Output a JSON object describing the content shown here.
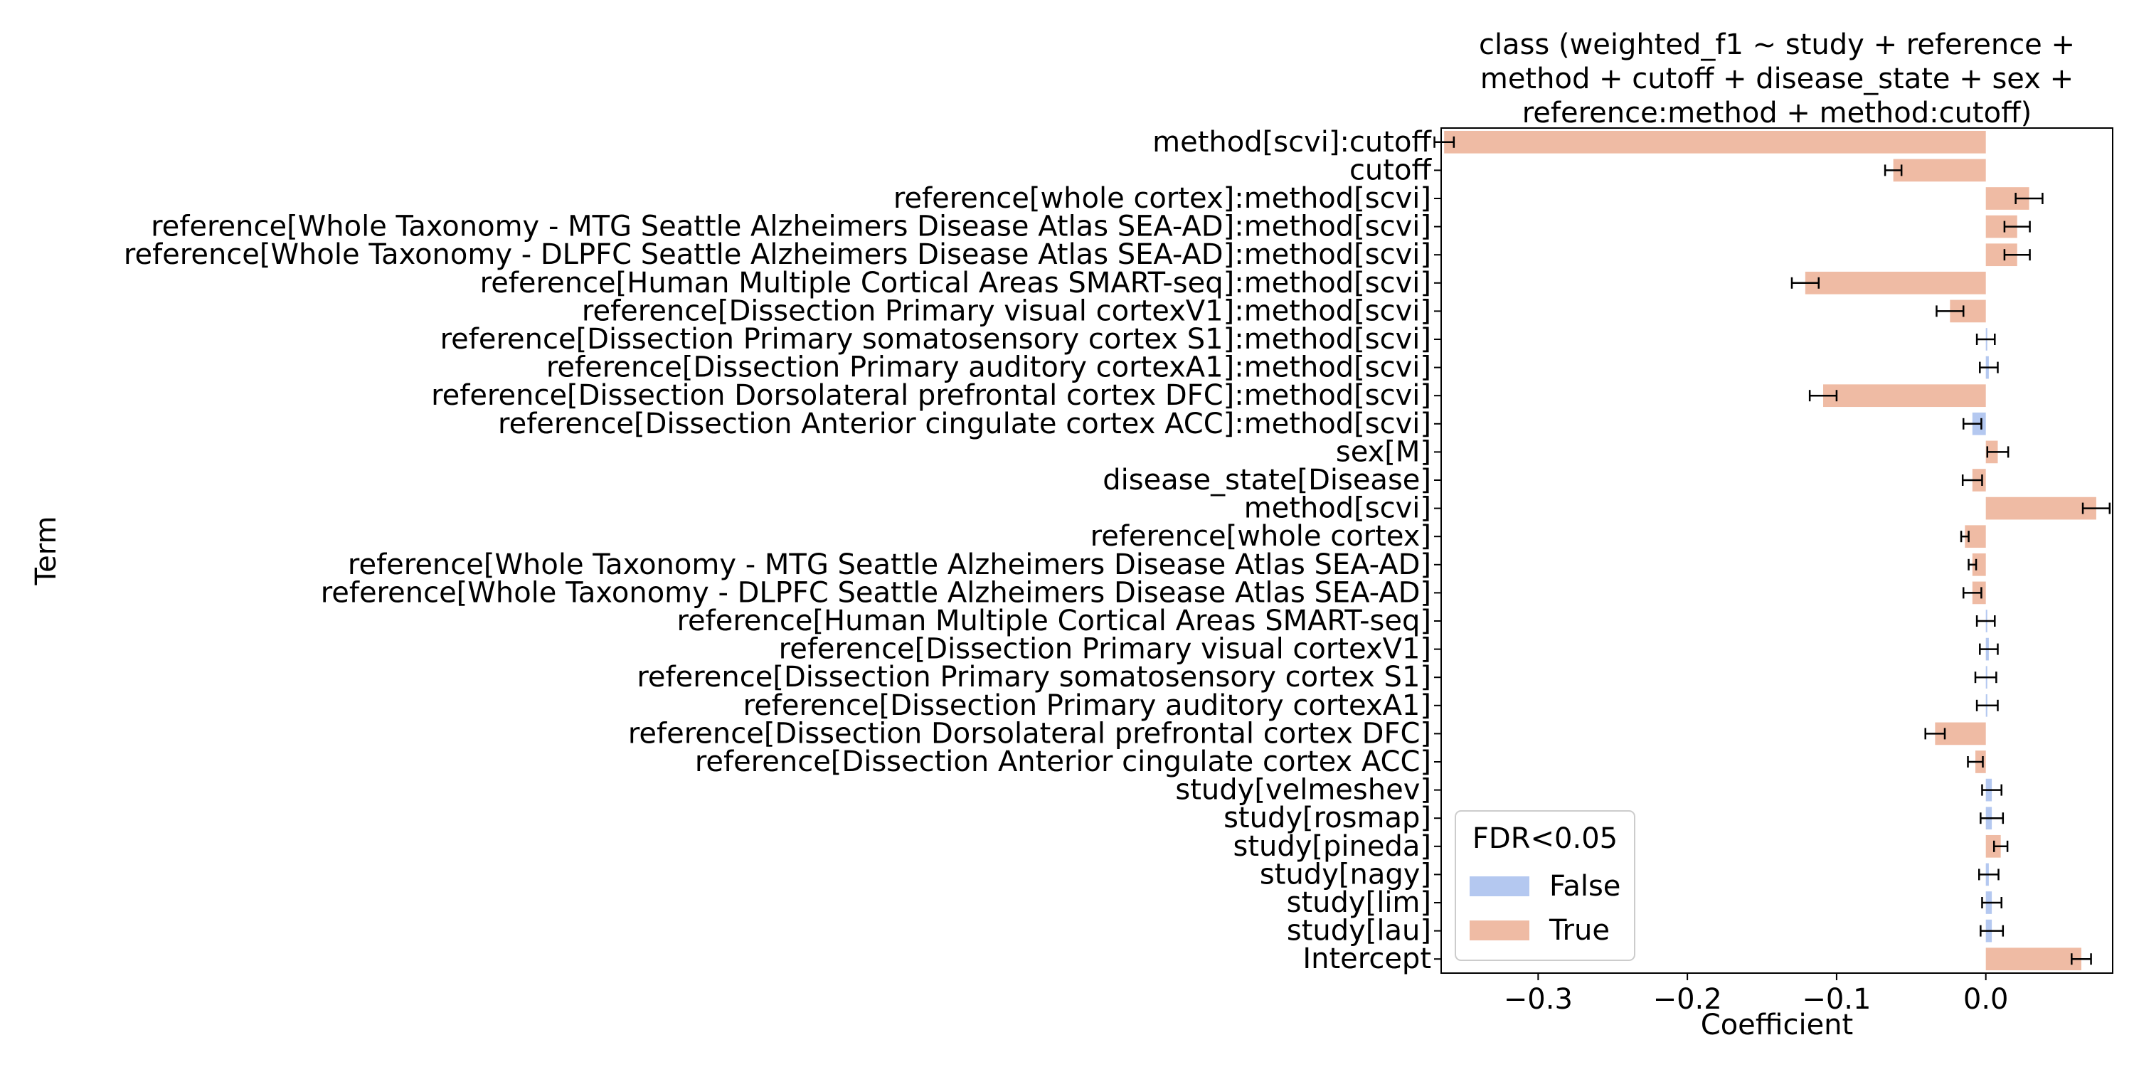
{
  "chart_data": {
    "type": "bar",
    "orientation": "horizontal",
    "title_lines": [
      "class (weighted_f1 ~ study + reference +",
      "method + cutoff + disease_state + sex +",
      "reference:method + method:cutoff)"
    ],
    "xlabel": "Coefficient",
    "ylabel": "Term",
    "xlim": [
      -0.365,
      0.085
    ],
    "xticks": [
      -0.3,
      -0.2,
      -0.1,
      0.0
    ],
    "xtick_labels": [
      "−0.3",
      "−0.2",
      "−0.1",
      "0.0"
    ],
    "grid": false,
    "legend": {
      "title": "FDR<0.05",
      "placement": "lower-left",
      "entries": [
        {
          "label": "False",
          "color": "#b4c8f0"
        },
        {
          "label": "True",
          "color": "#efbba4"
        }
      ]
    },
    "colors": {
      "False": "#b4c8f0",
      "True": "#efbba4",
      "error_bar": "#000000"
    },
    "terms": [
      {
        "label": "method[scvi]:cutoff",
        "value": -0.363,
        "err": 0.0065,
        "fdr": "True"
      },
      {
        "label": "cutoff",
        "value": -0.062,
        "err": 0.0055,
        "fdr": "True"
      },
      {
        "label": "reference[whole cortex]:method[scvi]",
        "value": 0.029,
        "err": 0.009,
        "fdr": "True"
      },
      {
        "label": "reference[Whole Taxonomy - MTG Seattle Alzheimers Disease Atlas SEA-AD]:method[scvi]",
        "value": 0.021,
        "err": 0.0085,
        "fdr": "True"
      },
      {
        "label": "reference[Whole Taxonomy - DLPFC Seattle Alzheimers Disease Atlas SEA-AD]:method[scvi]",
        "value": 0.021,
        "err": 0.0085,
        "fdr": "True"
      },
      {
        "label": "reference[Human Multiple Cortical Areas SMART-seq]:method[scvi]",
        "value": -0.121,
        "err": 0.009,
        "fdr": "True"
      },
      {
        "label": "reference[Dissection Primary visual cortexV1]:method[scvi]",
        "value": -0.024,
        "err": 0.009,
        "fdr": "True"
      },
      {
        "label": "reference[Dissection Primary somatosensory cortex S1]:method[scvi]",
        "value": 0.0,
        "err": 0.006,
        "fdr": "False"
      },
      {
        "label": "reference[Dissection Primary auditory cortexA1]:method[scvi]",
        "value": 0.002,
        "err": 0.006,
        "fdr": "False"
      },
      {
        "label": "reference[Dissection Dorsolateral prefrontal cortex DFC]:method[scvi]",
        "value": -0.109,
        "err": 0.009,
        "fdr": "True"
      },
      {
        "label": "reference[Dissection Anterior cingulate cortex ACC]:method[scvi]",
        "value": -0.009,
        "err": 0.006,
        "fdr": "False"
      },
      {
        "label": "sex[M]",
        "value": 0.008,
        "err": 0.007,
        "fdr": "True"
      },
      {
        "label": "disease_state[Disease]",
        "value": -0.009,
        "err": 0.0065,
        "fdr": "True"
      },
      {
        "label": "method[scvi]",
        "value": 0.074,
        "err": 0.009,
        "fdr": "True"
      },
      {
        "label": "reference[whole cortex]",
        "value": -0.014,
        "err": 0.0025,
        "fdr": "True"
      },
      {
        "label": "reference[Whole Taxonomy - MTG Seattle Alzheimers Disease Atlas SEA-AD]",
        "value": -0.009,
        "err": 0.0025,
        "fdr": "True"
      },
      {
        "label": "reference[Whole Taxonomy - DLPFC Seattle Alzheimers Disease Atlas SEA-AD]",
        "value": -0.009,
        "err": 0.006,
        "fdr": "True"
      },
      {
        "label": "reference[Human Multiple Cortical Areas SMART-seq]",
        "value": 0.0,
        "err": 0.006,
        "fdr": "False"
      },
      {
        "label": "reference[Dissection Primary visual cortexV1]",
        "value": 0.002,
        "err": 0.006,
        "fdr": "False"
      },
      {
        "label": "reference[Dissection Primary somatosensory cortex S1]",
        "value": 0.0,
        "err": 0.007,
        "fdr": "False"
      },
      {
        "label": "reference[Dissection Primary auditory cortexA1]",
        "value": 0.001,
        "err": 0.007,
        "fdr": "False"
      },
      {
        "label": "reference[Dissection Dorsolateral prefrontal cortex DFC]",
        "value": -0.034,
        "err": 0.0065,
        "fdr": "True"
      },
      {
        "label": "reference[Dissection Anterior cingulate cortex ACC]",
        "value": -0.007,
        "err": 0.005,
        "fdr": "True"
      },
      {
        "label": "study[velmeshev]",
        "value": 0.004,
        "err": 0.0065,
        "fdr": "False"
      },
      {
        "label": "study[rosmap]",
        "value": 0.004,
        "err": 0.0075,
        "fdr": "False"
      },
      {
        "label": "study[pineda]",
        "value": 0.01,
        "err": 0.0045,
        "fdr": "True"
      },
      {
        "label": "study[nagy]",
        "value": 0.002,
        "err": 0.0065,
        "fdr": "False"
      },
      {
        "label": "study[lim]",
        "value": 0.004,
        "err": 0.0065,
        "fdr": "False"
      },
      {
        "label": "study[lau]",
        "value": 0.004,
        "err": 0.0075,
        "fdr": "False"
      },
      {
        "label": "Intercept",
        "value": 0.064,
        "err": 0.0065,
        "fdr": "True"
      }
    ]
  }
}
